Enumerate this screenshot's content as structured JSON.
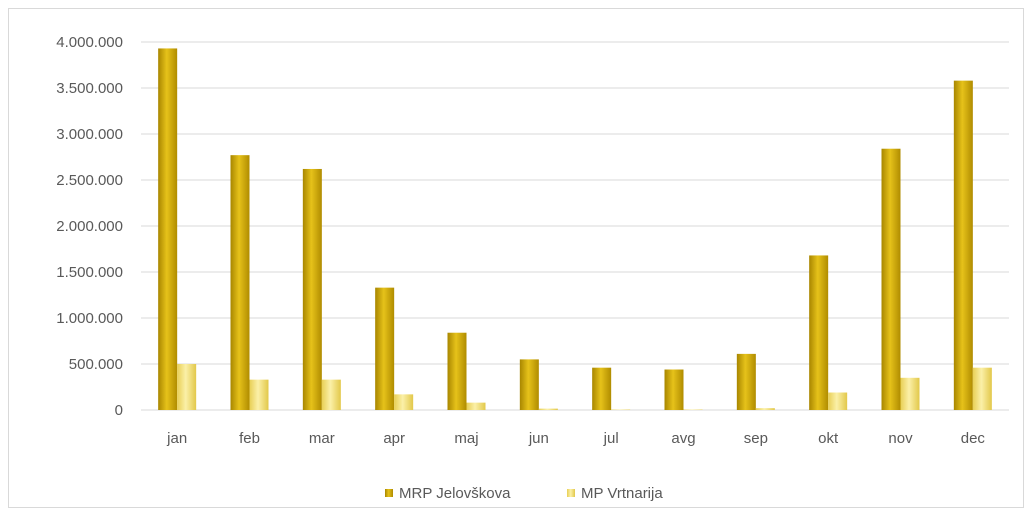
{
  "chart_data": {
    "type": "bar",
    "categories": [
      "jan",
      "feb",
      "mar",
      "apr",
      "maj",
      "jun",
      "jul",
      "avg",
      "sep",
      "okt",
      "nov",
      "dec"
    ],
    "series": [
      {
        "name": "MRP Jelovškova",
        "color": "#c9a400",
        "values": [
          3930000,
          2770000,
          2620000,
          1330000,
          840000,
          550000,
          460000,
          440000,
          610000,
          1680000,
          2840000,
          3580000
        ]
      },
      {
        "name": "MP Vrtnarija",
        "color": "#f3e27a",
        "values": [
          500000,
          330000,
          330000,
          170000,
          80000,
          15000,
          5000,
          5000,
          20000,
          190000,
          350000,
          460000
        ]
      }
    ],
    "yticks": [
      "0",
      "500.000",
      "1.000.000",
      "1.500.000",
      "2.000.000",
      "2.500.000",
      "3.000.000",
      "3.500.000",
      "4.000.000"
    ],
    "ylim": [
      0,
      4000000
    ],
    "grid": true,
    "legend_position": "bottom",
    "title": "",
    "xlabel": "",
    "ylabel": ""
  }
}
